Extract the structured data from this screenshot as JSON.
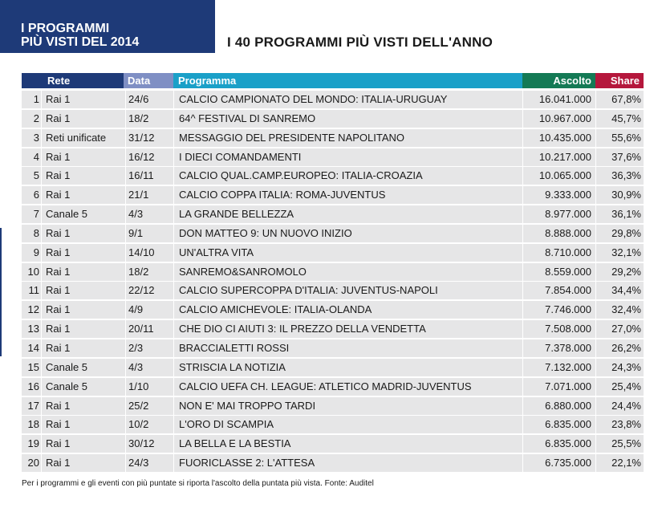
{
  "header": {
    "title_line1": "I PROGRAMMI",
    "title_line2": "PIÙ VISTI DEL 2014",
    "subtitle": "I 40 PROGRAMMI PIÙ VISTI DELL'ANNO"
  },
  "table": {
    "columns": [
      "Rete",
      "Data",
      "Programma",
      "Ascolto",
      "Share"
    ],
    "rows": [
      {
        "num": "1",
        "rete": "Rai 1",
        "data": "24/6",
        "programma": "CALCIO CAMPIONATO DEL MONDO: ITALIA-URUGUAY",
        "ascolto": "16.041.000",
        "share": "67,8%"
      },
      {
        "num": "2",
        "rete": "Rai 1",
        "data": "18/2",
        "programma": "64^ FESTIVAL DI SANREMO",
        "ascolto": "10.967.000",
        "share": "45,7%"
      },
      {
        "num": "3",
        "rete": "Reti unificate",
        "data": "31/12",
        "programma": "MESSAGGIO DEL PRESIDENTE NAPOLITANO",
        "ascolto": "10.435.000",
        "share": "55,6%"
      },
      {
        "num": "4",
        "rete": "Rai 1",
        "data": "16/12",
        "programma": "I DIECI COMANDAMENTI",
        "ascolto": "10.217.000",
        "share": "37,6%"
      },
      {
        "num": "5",
        "rete": "Rai 1",
        "data": "16/11",
        "programma": "CALCIO QUAL.CAMP.EUROPEO: ITALIA-CROAZIA",
        "ascolto": "10.065.000",
        "share": "36,3%"
      },
      {
        "num": "6",
        "rete": "Rai 1",
        "data": "21/1",
        "programma": "CALCIO COPPA ITALIA: ROMA-JUVENTUS",
        "ascolto": "9.333.000",
        "share": "30,9%"
      },
      {
        "num": "7",
        "rete": "Canale 5",
        "data": "4/3",
        "programma": "LA GRANDE BELLEZZA",
        "ascolto": "8.977.000",
        "share": "36,1%"
      },
      {
        "num": "8",
        "rete": "Rai 1",
        "data": "9/1",
        "programma": "DON MATTEO 9: UN NUOVO INIZIO",
        "ascolto": "8.888.000",
        "share": "29,8%"
      },
      {
        "num": "9",
        "rete": "Rai 1",
        "data": "14/10",
        "programma": "UN'ALTRA VITA",
        "ascolto": "8.710.000",
        "share": "32,1%"
      },
      {
        "num": "10",
        "rete": "Rai 1",
        "data": "18/2",
        "programma": "SANREMO&SANROMOLO",
        "ascolto": "8.559.000",
        "share": "29,2%"
      },
      {
        "num": "11",
        "rete": "Rai 1",
        "data": "22/12",
        "programma": "CALCIO SUPERCOPPA D'ITALIA: JUVENTUS-NAPOLI",
        "ascolto": "7.854.000",
        "share": "34,4%"
      },
      {
        "num": "12",
        "rete": "Rai 1",
        "data": "4/9",
        "programma": "CALCIO AMICHEVOLE: ITALIA-OLANDA",
        "ascolto": "7.746.000",
        "share": "32,4%"
      },
      {
        "num": "13",
        "rete": "Rai 1",
        "data": "20/11",
        "programma": "CHE DIO CI AIUTI 3: IL PREZZO DELLA VENDETTA",
        "ascolto": "7.508.000",
        "share": "27,0%"
      },
      {
        "num": "14",
        "rete": "Rai 1",
        "data": "2/3",
        "programma": "BRACCIALETTI ROSSI",
        "ascolto": "7.378.000",
        "share": "26,2%"
      },
      {
        "num": "15",
        "rete": "Canale 5",
        "data": "4/3",
        "programma": "STRISCIA LA NOTIZIA",
        "ascolto": "7.132.000",
        "share": "24,3%"
      },
      {
        "num": "16",
        "rete": "Canale 5",
        "data": "1/10",
        "programma": "CALCIO UEFA CH. LEAGUE: ATLETICO MADRID-JUVENTUS",
        "ascolto": "7.071.000",
        "share": "25,4%"
      },
      {
        "num": "17",
        "rete": "Rai 1",
        "data": "25/2",
        "programma": "NON E' MAI TROPPO TARDI",
        "ascolto": "6.880.000",
        "share": "24,4%"
      },
      {
        "num": "18",
        "rete": "Rai 1",
        "data": "10/2",
        "programma": "L'ORO DI SCAMPIA",
        "ascolto": "6.835.000",
        "share": "23,8%"
      },
      {
        "num": "19",
        "rete": "Rai 1",
        "data": "30/12",
        "programma": "LA BELLA E LA BESTIA",
        "ascolto": "6.835.000",
        "share": "25,5%"
      },
      {
        "num": "20",
        "rete": "Rai 1",
        "data": "24/3",
        "programma": "FUORICLASSE 2: L'ATTESA",
        "ascolto": "6.735.000",
        "share": "22,1%"
      }
    ]
  },
  "footnote": "Per i programmi e gli eventi con più puntate si riporta l'ascolto della puntata più vista. Fonte: Auditel",
  "colors": {
    "title_bg": "#1e3a78",
    "rete_header": "#1e3a78",
    "data_header": "#7f8fc4",
    "programma_header": "#1aa0c8",
    "ascolto_header": "#147a55",
    "share_header": "#b5173c",
    "row_bg": "#e6e6e7"
  }
}
